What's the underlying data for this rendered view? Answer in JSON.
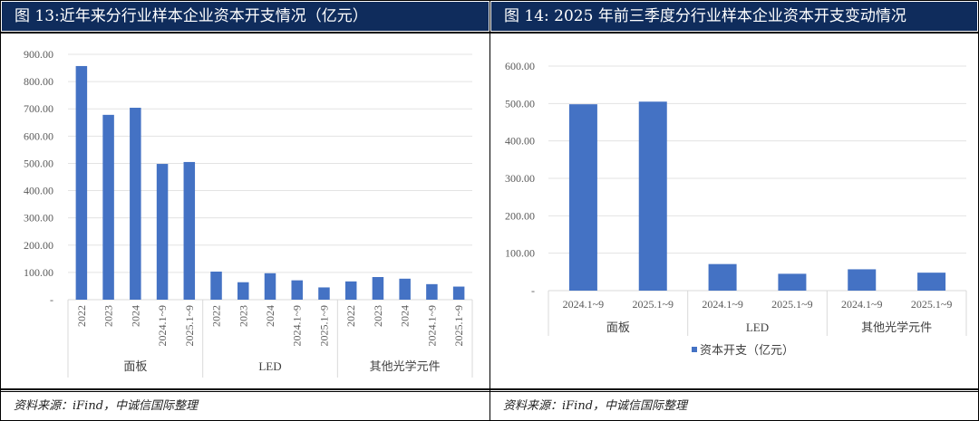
{
  "figures": [
    {
      "title": "图 13:近年来分行业样本企业资本开支情况（亿元）",
      "source": "资料来源：iFind，中诚信国际整理"
    },
    {
      "title": "图 14: 2025 年前三季度分行业样本企业资本开支变动情况",
      "source": "资料来源：iFind，中诚信国际整理"
    }
  ],
  "colors": {
    "bar": "#4472c4",
    "title_bg": "#0f2c5c",
    "grid": "#e3e3e3",
    "axis_text": "#595959"
  },
  "chart_data": [
    {
      "type": "bar",
      "title": "近年来分行业样本企业资本开支情况（亿元）",
      "xlabel": "",
      "ylabel": "",
      "ylim": [
        0,
        900
      ],
      "yticks": [
        "-",
        "100.00",
        "200.00",
        "300.00",
        "400.00",
        "500.00",
        "600.00",
        "700.00",
        "800.00",
        "900.00"
      ],
      "grid": true,
      "legend": null,
      "groups": [
        {
          "name": "面板",
          "categories": [
            "2022",
            "2023",
            "2024",
            "2024.1~9",
            "2025.1~9"
          ],
          "values": [
            857,
            678,
            704,
            498,
            505
          ]
        },
        {
          "name": "LED",
          "categories": [
            "2022",
            "2023",
            "2024",
            "2024.1~9",
            "2025.1~9"
          ],
          "values": [
            103,
            64,
            97,
            71,
            45
          ]
        },
        {
          "name": "其他光学元件",
          "categories": [
            "2022",
            "2023",
            "2024",
            "2024.1~9",
            "2025.1~9"
          ],
          "values": [
            67,
            83,
            77,
            57,
            48
          ]
        }
      ]
    },
    {
      "type": "bar",
      "title": "2025 年前三季度分行业样本企业资本开支变动情况",
      "xlabel": "",
      "ylabel": "",
      "ylim": [
        0,
        600
      ],
      "yticks": [
        "-",
        "100.00",
        "200.00",
        "300.00",
        "400.00",
        "500.00",
        "600.00"
      ],
      "grid": true,
      "legend": {
        "position": "bottom",
        "entries": [
          "资本开支（亿元）"
        ]
      },
      "groups": [
        {
          "name": "面板",
          "categories": [
            "2024.1~9",
            "2025.1~9"
          ],
          "values": [
            498,
            505
          ]
        },
        {
          "name": "LED",
          "categories": [
            "2024.1~9",
            "2025.1~9"
          ],
          "values": [
            71,
            45
          ]
        },
        {
          "name": "其他光学元件",
          "categories": [
            "2024.1~9",
            "2025.1~9"
          ],
          "values": [
            57,
            48
          ]
        }
      ]
    }
  ]
}
